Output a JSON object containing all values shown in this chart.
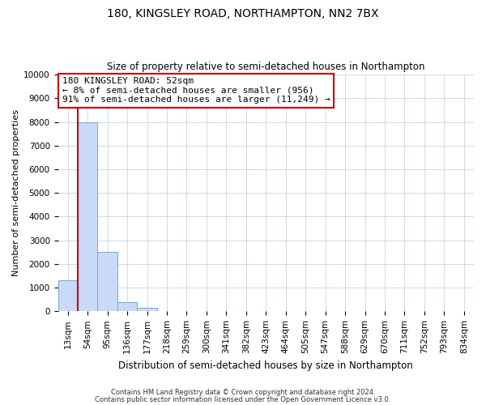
{
  "title": "180, KINGSLEY ROAD, NORTHAMPTON, NN2 7BX",
  "subtitle": "Size of property relative to semi-detached houses in Northampton",
  "bar_labels": [
    "13sqm",
    "54sqm",
    "95sqm",
    "136sqm",
    "177sqm",
    "218sqm",
    "259sqm",
    "300sqm",
    "341sqm",
    "382sqm",
    "423sqm",
    "464sqm",
    "505sqm",
    "547sqm",
    "588sqm",
    "629sqm",
    "670sqm",
    "711sqm",
    "752sqm",
    "793sqm",
    "834sqm"
  ],
  "bar_values": [
    1300,
    8000,
    2500,
    400,
    150,
    0,
    0,
    0,
    0,
    0,
    0,
    0,
    0,
    0,
    0,
    0,
    0,
    0,
    0,
    0,
    0
  ],
  "bar_color": "#c9daf8",
  "bar_edge_color": "#6fa8dc",
  "property_line_color": "#cc0000",
  "ylim": [
    0,
    10000
  ],
  "yticks": [
    0,
    1000,
    2000,
    3000,
    4000,
    5000,
    6000,
    7000,
    8000,
    9000,
    10000
  ],
  "ylabel": "Number of semi-detached properties",
  "xlabel": "Distribution of semi-detached houses by size in Northampton",
  "annotation_title": "180 KINGSLEY ROAD: 52sqm",
  "annotation_line1": "← 8% of semi-detached houses are smaller (956)",
  "annotation_line2": "91% of semi-detached houses are larger (11,249) →",
  "annotation_box_color": "#ffffff",
  "annotation_box_edge": "#cc0000",
  "footer1": "Contains HM Land Registry data © Crown copyright and database right 2024.",
  "footer2": "Contains public sector information licensed under the Open Government Licence v3.0.",
  "bg_color": "#ffffff",
  "grid_color": "#d0d8e8",
  "title_fontsize": 10,
  "subtitle_fontsize": 8.5,
  "annotation_fontsize": 8,
  "ylabel_fontsize": 8,
  "xlabel_fontsize": 8.5,
  "tick_fontsize": 7.5,
  "footer_fontsize": 6
}
